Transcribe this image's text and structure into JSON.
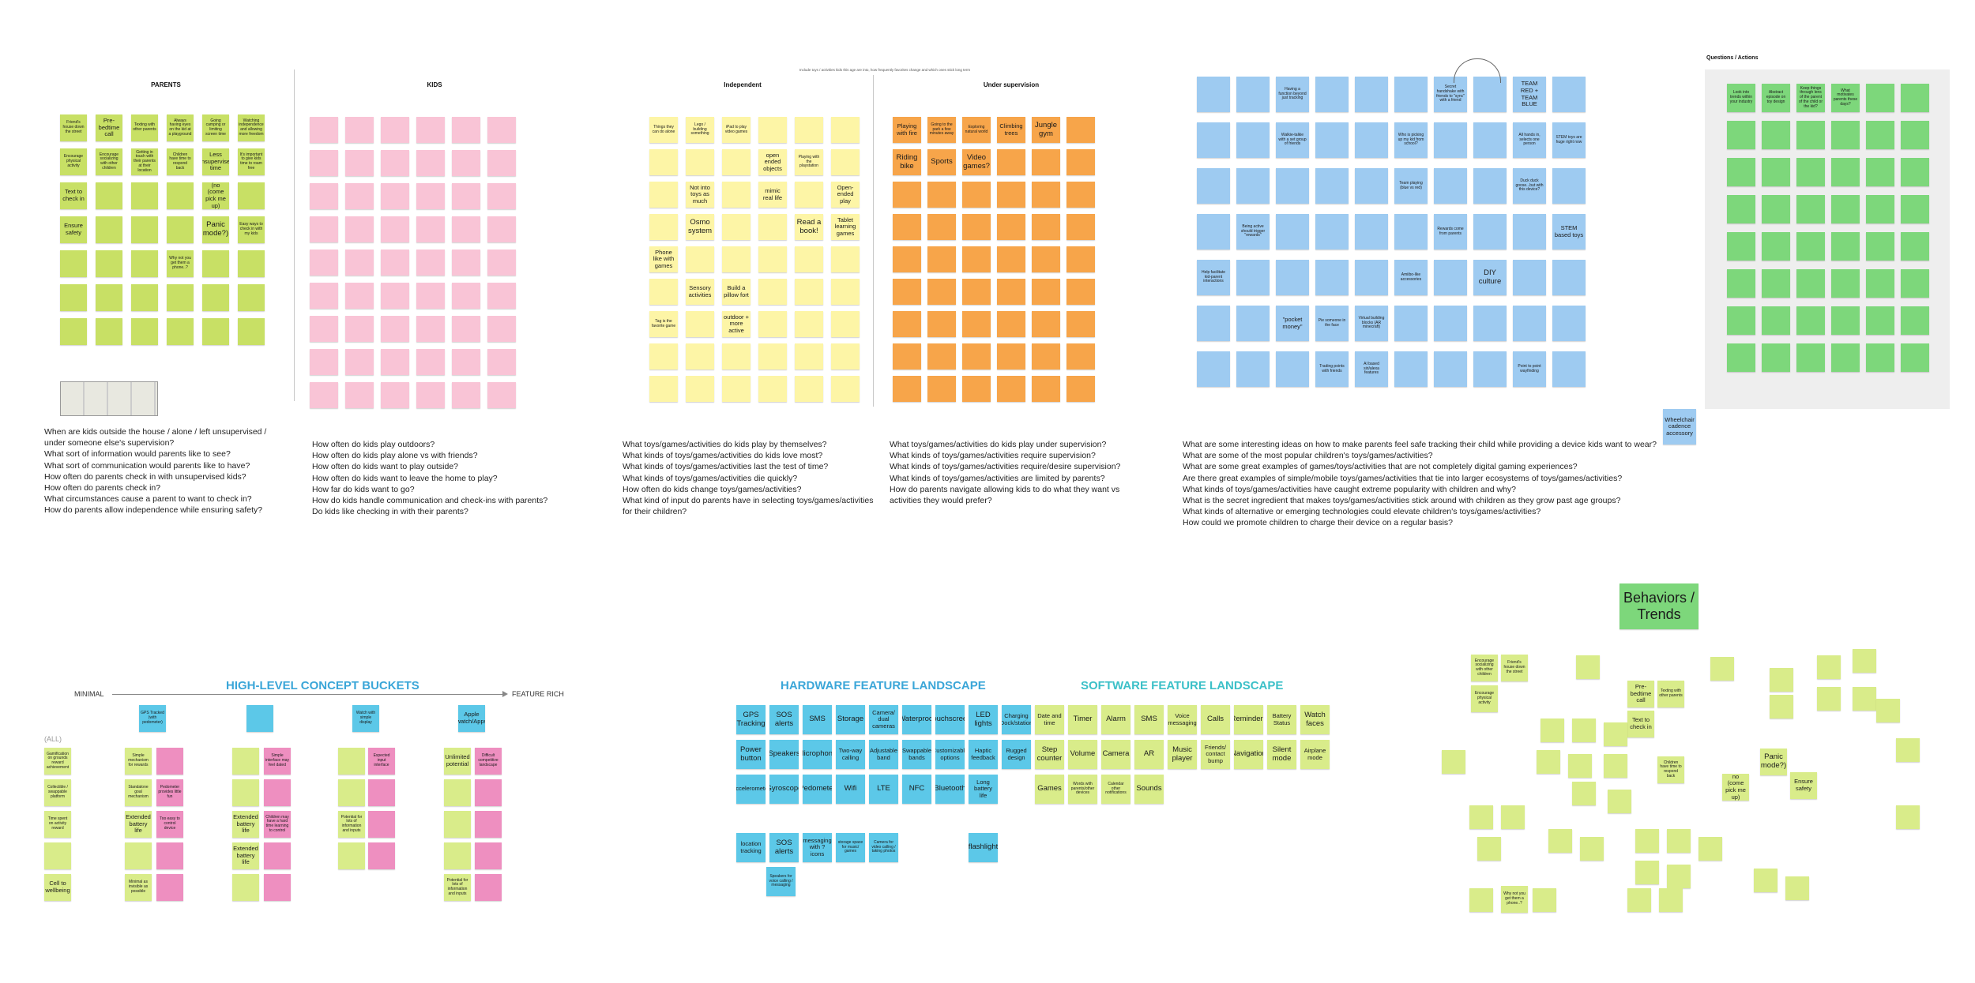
{
  "board": {
    "subtitle": "Include toys / activities kids this age are into, how frequently favorites change and which ones stick long term",
    "sections": {
      "parents": "PARENTS",
      "kids": "KIDS",
      "independent": "Independent",
      "supervision": "Under supervision",
      "questions": "Questions / Actions"
    }
  },
  "parents_notes": [
    "Friend's house down the street",
    "Pre-bedtime call",
    "Texting with other parents",
    "Always having eyes on the kid at a playground",
    "Going camping or limiting screen time",
    "Watching independence and allowing more freedom",
    "Encourage physical activity",
    "Encourage socializing with other children",
    "Getting in touch with their parents at their location",
    "Children have time to respond back",
    "Less unsupervised time",
    "It's important to give kids time to roam free",
    "Text to check in",
    "",
    "",
    "",
    "(no (come pick me up)",
    "",
    "Ensure safety",
    "",
    "",
    "",
    "Panic mode?)",
    "Easy ways to check in with my kids",
    "",
    "",
    "",
    "Why not you get them a phone..?",
    "",
    "",
    "",
    "",
    "",
    "",
    "",
    "",
    "",
    "",
    "",
    "",
    "",
    ""
  ],
  "independent_notes": [
    "Things they can do alone",
    "Lego / building something",
    "iPad to play video games",
    "",
    "",
    "",
    "",
    "",
    "",
    "open ended objects",
    "Playing with the playstation",
    "",
    "",
    "Not into toys as much",
    "",
    "mimic real life",
    "",
    "Open-ended play",
    "",
    "Osmo system",
    "",
    "",
    "Read a book!",
    "Tablet learning games",
    "Phone like with games",
    "",
    "",
    "",
    "",
    "",
    "",
    "Sensory activities",
    "Build a pillow fort",
    "",
    "",
    "",
    "Tag is the favorite game",
    "",
    "outdoor + more active",
    "",
    "",
    ""
  ],
  "supervision_notes": [
    "Playing with fire",
    "Going to the park a few minutes away",
    "Exploring natural world",
    "Climbing trees",
    "Jungle gym",
    "",
    "Riding bike",
    "Sports",
    "Video games?",
    "",
    "",
    ""
  ],
  "wide_blue_notes": [
    "",
    "",
    "Having a function beyond just tracking",
    "",
    "",
    "",
    "Secret handshake with friends to \"sync\" with a friend",
    "",
    "TEAM RED + TEAM BLUE",
    "",
    "",
    "",
    "Walkie-talkie with a set group of friends",
    "",
    "",
    "Who is picking up my kid from school?",
    "",
    "",
    "All hands in, selects one person",
    "STEM toys are huge right now",
    "",
    "",
    "",
    "",
    "",
    "Team playing (blue vs red)",
    "",
    "",
    "Duck duck goose...but with this device?",
    "",
    "",
    "Being active should trigger \"rewards\"",
    "",
    "",
    "",
    "",
    "Rewards come from parents",
    "",
    "",
    "STEM based toys",
    "Help facilitate kid-parent interactions",
    "",
    "",
    "",
    "",
    "Amiibo-like accessories",
    "",
    "DIY culture",
    "",
    "",
    "",
    "",
    "\"pocket money\"",
    "Pie someone in the face",
    "Virtual building blocks (AR minecraft)",
    "",
    "",
    "",
    "",
    "",
    "",
    "",
    "",
    "Trading points with friends",
    "AI based siri/alexa features",
    "",
    "",
    "",
    "Point to point wayfinding",
    ""
  ],
  "wheelchair": "Wheelchair cadence accessory",
  "question_blocks": {
    "parents": [
      "When are kids outside the house / alone / left unsupervised /",
      "under someone else's supervision?",
      "What sort of information would parents like to see?",
      "What sort of communication would parents like to have?",
      "How often do parents check in with unsupervised kids?",
      "How often do parents check in?",
      "What circumstances cause a parent to want to check in?",
      "How do parents allow independence while ensuring safety?"
    ],
    "kids": [
      "How often do kids play outdoors?",
      "How often do kids play alone vs with friends?",
      "How often do kids want to play outside?",
      "How often do kids want to leave the home to play?",
      "How far do kids want to go?",
      "How do kids handle communication and check-ins with parents?",
      "Do kids like checking in with their parents?"
    ],
    "independent": [
      "What toys/games/activities do kids play by themselves?",
      "What kinds of toys/games/activities do kids love most?",
      "What kinds of toys/games/activities last the test of time?",
      "What kinds of toys/games/activities die quickly?",
      "How often do kids change toys/games/activities?",
      "What kind of input do parents have in selecting toys/games/activities",
      "for their children?"
    ],
    "supervision": [
      "What toys/games/activities do kids play under supervision?",
      "What kinds of toys/games/activities require supervision?",
      "What kinds of toys/games/activities require/desire supervision?",
      "What kinds of toys/games/activities are limited by parents?",
      "How do parents navigate allowing kids to do what they want vs",
      "activities they would prefer?"
    ],
    "ideas": [
      "What are some interesting ideas on how to make parents feel safe tracking their child while providing a device kids want to wear?",
      "What are some of the most popular children's toys/games/activities?",
      "What are some great examples of games/toys/activities that are not completely digital gaming experiences?",
      "Are there great examples of simple/mobile toys/games/activities that tie into larger ecosystems of toys/games/activities?",
      "What kinds of toys/games/activities have caught extreme popularity with children and why?",
      "What is the secret ingredient that makes toys/games/activities stick around with children as they grow past age groups?",
      "What kinds of alternative or emerging technologies could elevate children's toys/games/activities?",
      "How could we promote children to charge their device on a regular basis?"
    ]
  },
  "concepts": {
    "title": "HIGH-LEVEL CONCEPT BUCKETS",
    "minimal": "MINIMAL",
    "feature_rich": "FEATURE RICH",
    "all": "(ALL)",
    "col1": [
      "Gamification on grounds reward achievement",
      "Collectible / swappable platform",
      "Time spent on activity reward",
      "",
      "Cell to wellbeing"
    ],
    "col2": [
      "Simple mechanism for rewards",
      "Standalone goal mechanism",
      "Extended battery life",
      "",
      "Minimal as invisible as possible"
    ],
    "col2p": [
      "",
      "Pedometer provides little fun",
      "Too easy to control device",
      "",
      ""
    ],
    "col3": [
      "",
      "",
      "Extended battery life",
      "Extended battery life",
      ""
    ],
    "col3p": [
      "Simple interface may feel dated",
      "",
      "Children may have a hard time learning to control",
      "",
      ""
    ],
    "col4": [
      "",
      "",
      "Potential for lots of information and inputs",
      ""
    ],
    "col4p": [
      "Expected input interface",
      "",
      "",
      ""
    ],
    "col5": [
      "Unlimited potential",
      "",
      "",
      "",
      "Potential for lots of information and inputs"
    ],
    "col5p": [
      "Difficult competitive landscape",
      "",
      "",
      "",
      ""
    ],
    "top_cyan": [
      "GPS Tracked (with pedometer)",
      "",
      "Watch with simple display",
      "Apple watch/Apps"
    ]
  },
  "hardware": {
    "title": "HARDWARE FEATURE LANDSCAPE",
    "row1": [
      "GPS Tracking",
      "SOS alerts",
      "SMS",
      "Storage",
      "Camera/ dual cameras",
      "Waterproof",
      "Touchscreen",
      "LED lights",
      "Charging Dock/station"
    ],
    "row2": [
      "Power button",
      "Speakers",
      "Microphone",
      "Two-way calling",
      "Adjustable band",
      "Swappable bands",
      "Customizable options",
      "Haptic feedback",
      "Rugged design"
    ],
    "row3": [
      "Accelerometer",
      "Gyroscope",
      "Pedometer",
      "Wifi",
      "LTE",
      "NFC",
      "Bluetooth",
      "Long battery life",
      ""
    ],
    "row4": [
      "location tracking",
      "SOS alerts",
      "messaging with ? icons",
      "storage space for music/ games",
      "Camera for video calling / taking photos",
      "",
      "",
      "flashlight",
      ""
    ],
    "extra": "Speakers for voice calling / messaging"
  },
  "software": {
    "title": "SOFTWARE FEATURE LANDSCAPE",
    "row1": [
      "Date and time",
      "Timer",
      "Alarm",
      "SMS",
      "Voice messaging",
      "Calls",
      "Reminders",
      "Battery Status",
      "Watch faces"
    ],
    "row2": [
      "Step counter",
      "Volume",
      "Camera",
      "AR",
      "Music player",
      "Friends/ contact bump",
      "Navigation",
      "Silent mode",
      "Airplane mode"
    ],
    "row3": [
      "Games",
      "Words with parents/other devices",
      "Calendar other notifications",
      "Sounds",
      "",
      "",
      "",
      "",
      ""
    ]
  },
  "trends": {
    "title": "Behaviors / Trends",
    "notes": [
      "Encourage socializing with other children",
      "Friend's house down the street",
      "Encourage physical activity",
      "Pre-bedtime call",
      "Texting with other parents",
      "Text to check in",
      "Children have time to respond back",
      "Panic mode?)",
      "Ensure safety",
      "Why not you get them a phone..?",
      "no (come pick me up)"
    ]
  },
  "questions_actions_notes": [
    "Look into trends within your industry",
    "Abstract episode on toy design",
    "Keep things through lens of the parent of the child or the kid?",
    "What motivates parents these days?"
  ]
}
